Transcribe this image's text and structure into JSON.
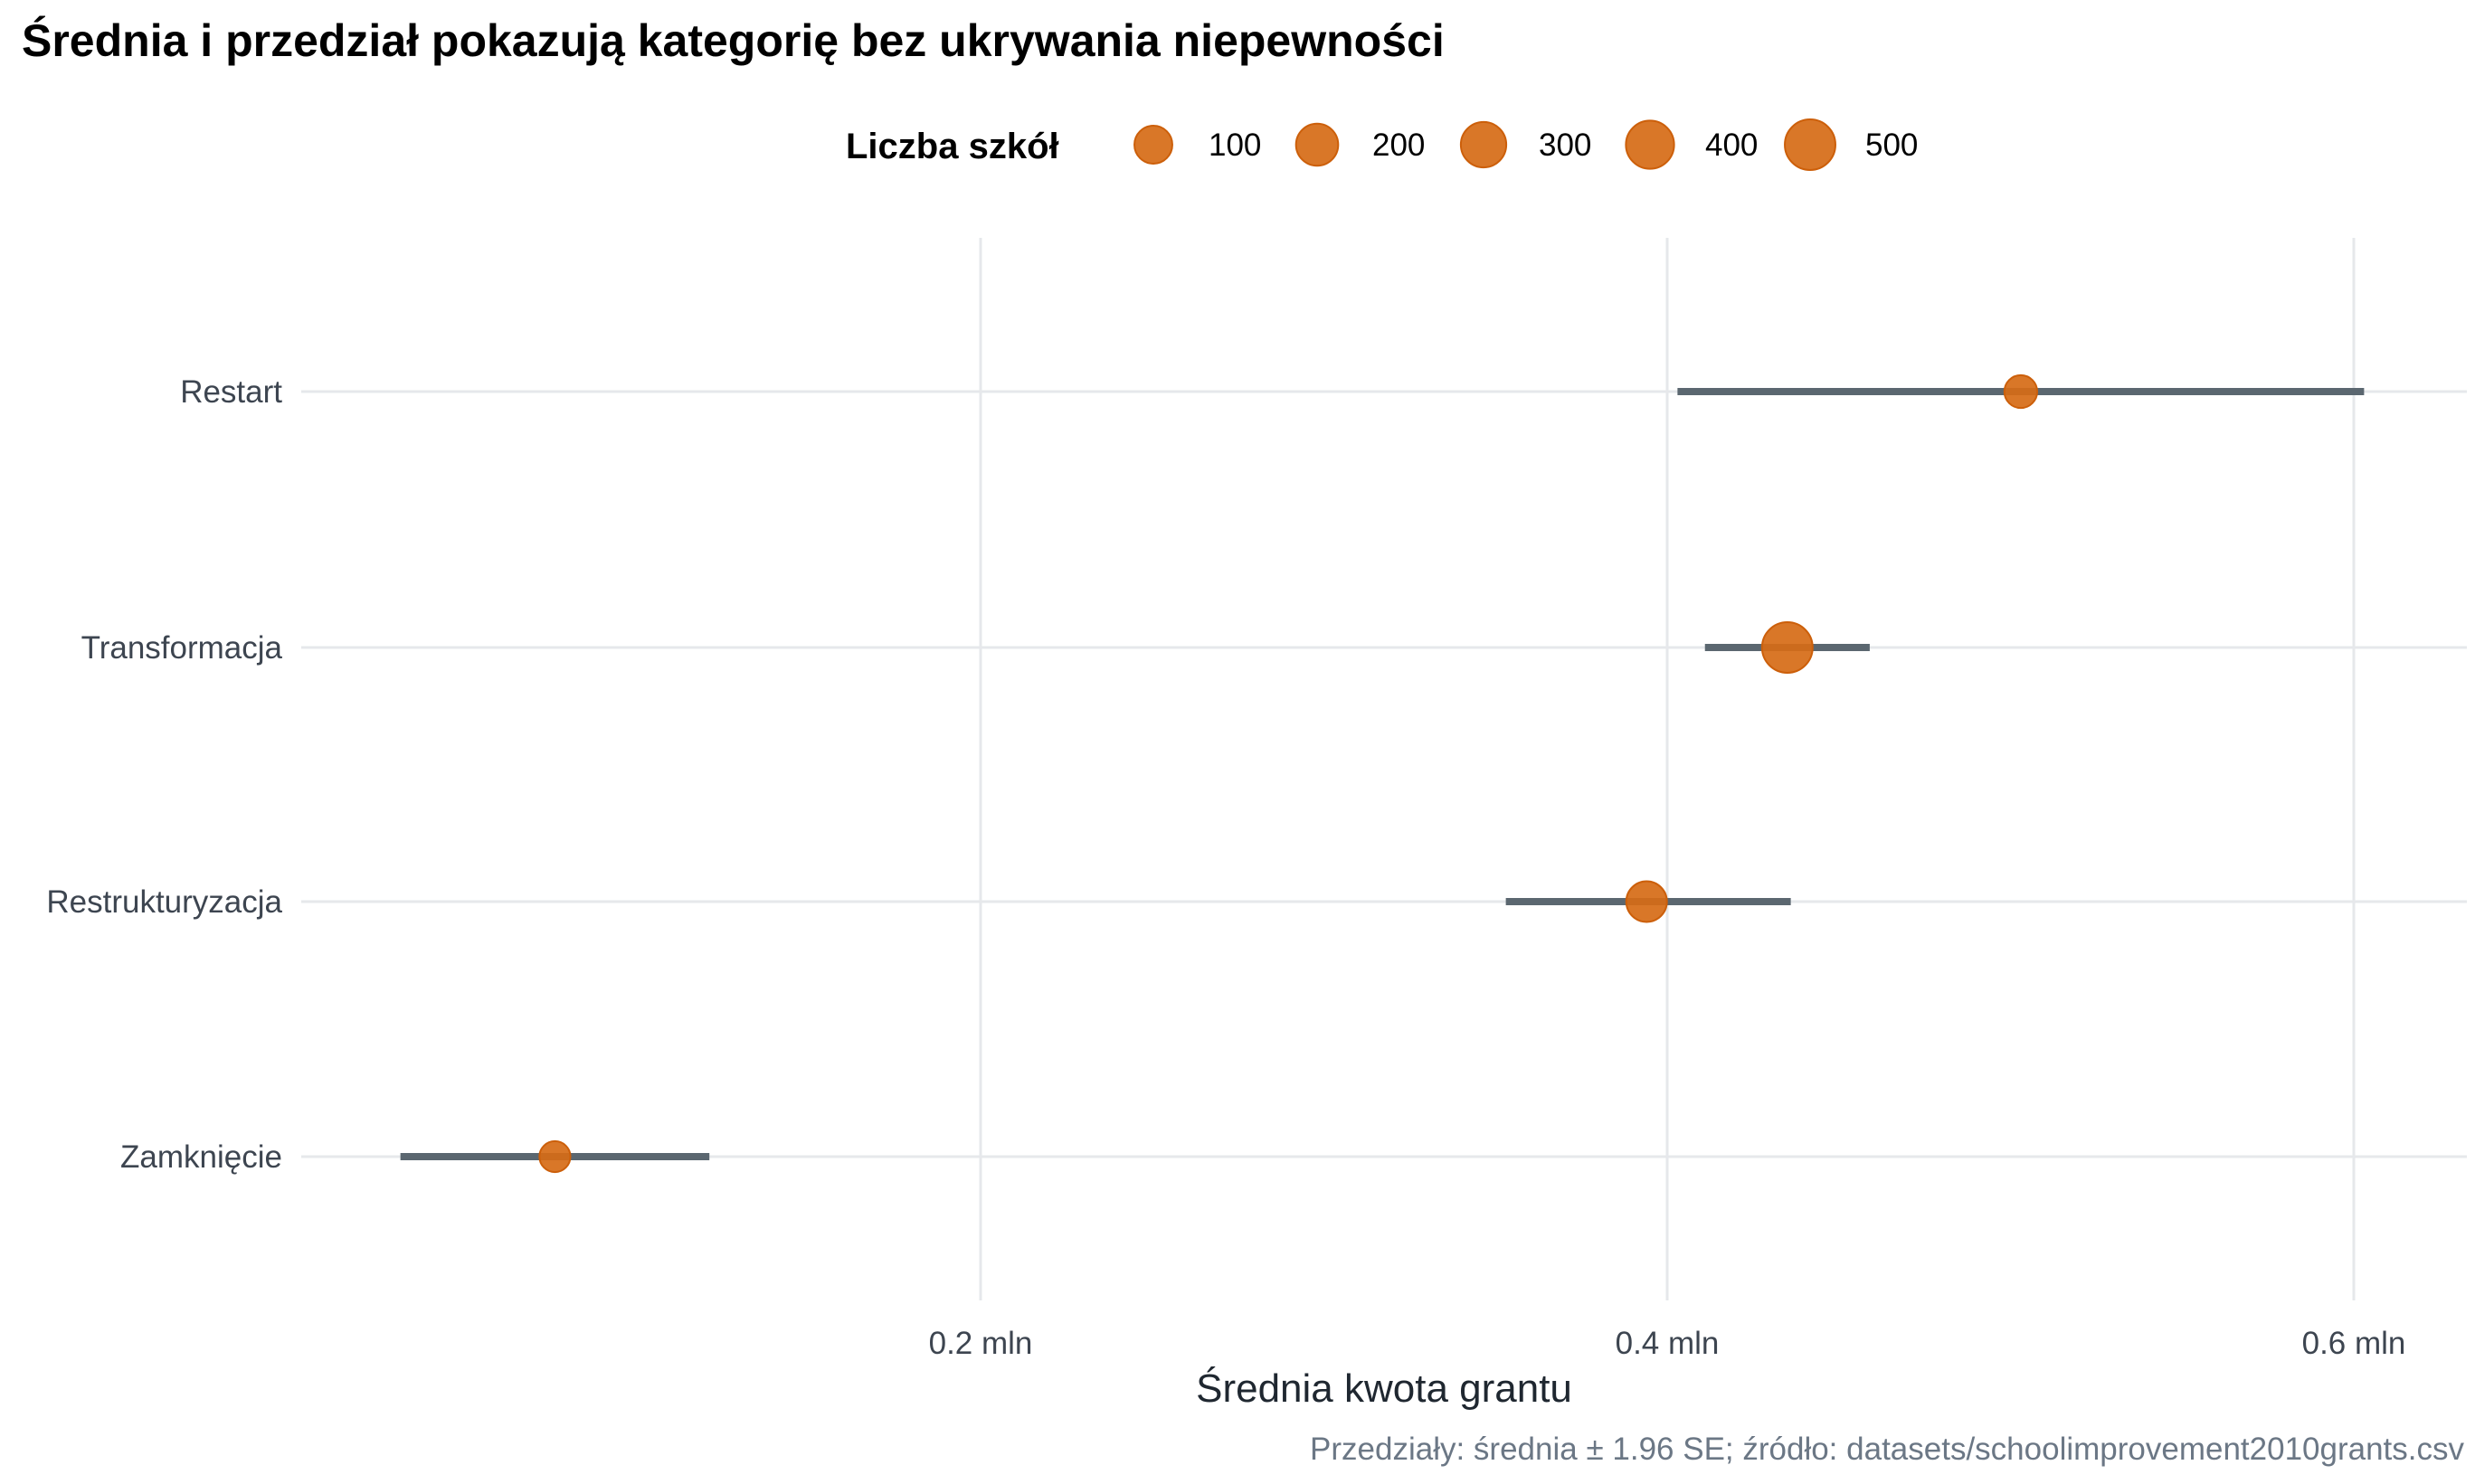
{
  "chart_data": {
    "type": "scatter",
    "subtype": "point-range",
    "title": "Średnia i przedział pokazują kategorię bez ukrywania niepewności",
    "xlabel": "Średnia kwota grantu",
    "ylabel": "",
    "caption": "Przedziały: średnia ± 1.96 SE; źródło: datasets/schoolimprovement2010grants.csv",
    "xlim": [
      0.002,
      0.63
    ],
    "x_unit": "mln",
    "x_ticks": [
      0.2,
      0.4,
      0.6
    ],
    "x_tick_labels": [
      "0.2 mln",
      "0.4 mln",
      "0.6 mln"
    ],
    "grid": true,
    "legend": {
      "title": "Liczba szkół",
      "placement": "top",
      "values": [
        100,
        200,
        300,
        400,
        500
      ],
      "labels": [
        "100",
        "200",
        "300",
        "400",
        "500"
      ]
    },
    "categories": [
      "Restart",
      "Transformacja",
      "Restrukturyzacja",
      "Zamknięcie"
    ],
    "mean": [
      0.503,
      0.435,
      0.394,
      0.076
    ],
    "lower": [
      0.403,
      0.411,
      0.353,
      0.031
    ],
    "upper": [
      0.603,
      0.459,
      0.436,
      0.121
    ],
    "count": [
      25,
      500,
      160,
      10
    ],
    "colors": {
      "point": "#d66b16",
      "point_stroke": "#cc5f0a",
      "interval": "#5b6770",
      "grid": "#e6e8eb"
    }
  }
}
